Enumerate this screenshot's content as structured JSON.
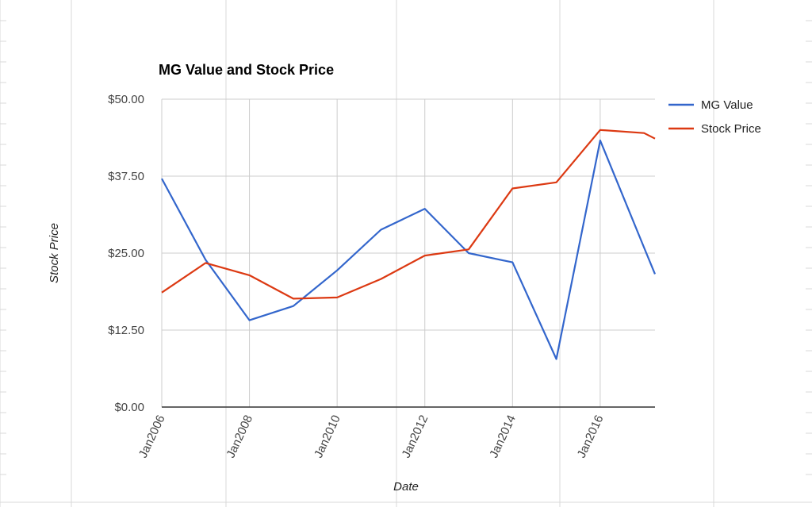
{
  "colors": {
    "background": "#ffffff",
    "grid": "#cccccc",
    "axis": "#333333",
    "mg_value": "#3366cc",
    "stock_price": "#dc3912",
    "sheet_grid": "#d9d9d9"
  },
  "chart_data": {
    "type": "line",
    "title": "MG Value and Stock Price",
    "xlabel": "Date",
    "ylabel": "Stock Price",
    "ylim": [
      0,
      50
    ],
    "xlim": [
      "2006-01",
      "2017-04"
    ],
    "x_ticks": [
      "Jan2006",
      "Jan2008",
      "Jan2010",
      "Jan2012",
      "Jan2014",
      "Jan2016"
    ],
    "y_ticks": [
      "$0.00",
      "$12.50",
      "$25.00",
      "$37.50",
      "$50.00"
    ],
    "y_tick_values": [
      0,
      12.5,
      25,
      37.5,
      50
    ],
    "grid": true,
    "legend_position": "top-right",
    "x": [
      "2006-01",
      "2007-01",
      "2008-01",
      "2009-01",
      "2010-01",
      "2011-01",
      "2012-01",
      "2013-01",
      "2014-01",
      "2015-01",
      "2016-01",
      "2017-01",
      "2017-04"
    ],
    "series": [
      {
        "name": "MG Value",
        "color": "#3366cc",
        "values": [
          37.1,
          23.9,
          14.1,
          16.4,
          22.2,
          28.8,
          32.2,
          25.0,
          23.5,
          7.8,
          43.3,
          25.9,
          21.6
        ]
      },
      {
        "name": "Stock Price",
        "color": "#dc3912",
        "values": [
          18.6,
          23.4,
          21.4,
          17.6,
          17.8,
          20.8,
          24.6,
          25.6,
          35.5,
          36.5,
          45.0,
          44.5,
          43.6
        ]
      }
    ]
  }
}
